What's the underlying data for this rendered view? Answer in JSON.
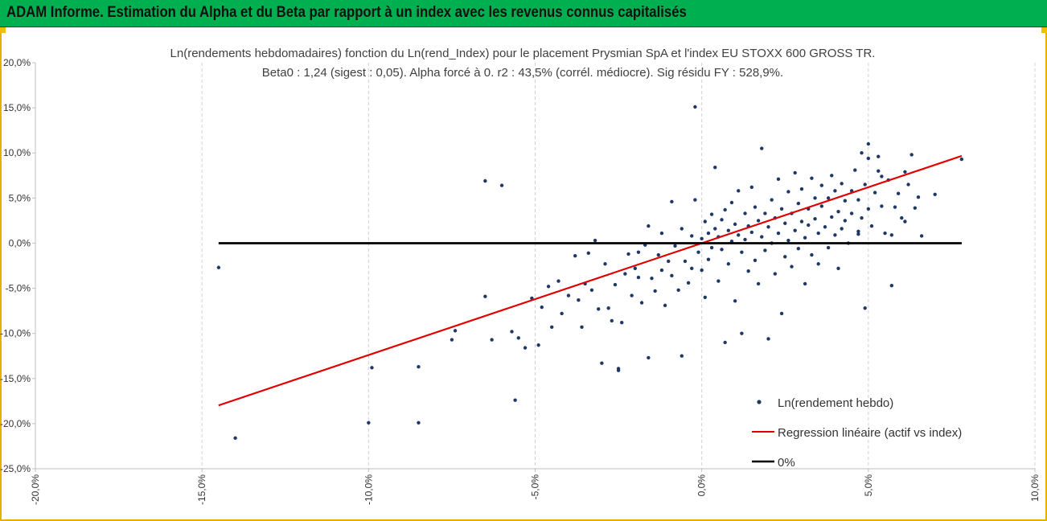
{
  "header": {
    "title": "ADAM Informe. Estimation du Alpha et du Beta par rapport à un index avec les revenus connus capitalisés"
  },
  "chart_data": {
    "type": "scatter",
    "title": "Ln(rendements hebdomadaires) fonction du Ln(rend_Index) pour le placement Prysmian SpA et l'index EU STOXX 600 GROSS TR.",
    "subtitle": "Beta0 : 1,24  (sigest : 0,05).  Alpha forcé à 0. r2 : 43,5% (corrél. médiocre). Sig résidu FY : 528,9%.",
    "xlim": [
      -0.2,
      0.1
    ],
    "ylim": [
      -0.25,
      0.2
    ],
    "x_ticks": [
      -0.2,
      -0.15,
      -0.1,
      -0.05,
      0,
      0.05,
      0.1
    ],
    "x_tick_labels": [
      "-20,0%",
      "-15,0%",
      "-10,0%",
      "-5,0%",
      "0,0%",
      "5,0%",
      "10,0%"
    ],
    "y_ticks": [
      0.2,
      0.15,
      0.1,
      0.05,
      0,
      -0.05,
      -0.1,
      -0.15,
      -0.2,
      -0.25
    ],
    "y_tick_labels": [
      "20,0%",
      "15,0%",
      "10,0%",
      "5,0%",
      "0,0%",
      "-5,0%",
      "-10,0%",
      "-15,0%",
      "-20,0%",
      "-25,0%"
    ],
    "grid": "vertical",
    "legend_position": "bottom-right",
    "series": [
      {
        "name": "Ln(rendement hebdo)",
        "kind": "scatter",
        "color": "#1f3864",
        "beta": 1.24,
        "points": [
          [
            -0.145,
            -0.027
          ],
          [
            -0.14,
            -0.216
          ],
          [
            -0.1,
            -0.199
          ],
          [
            -0.099,
            -0.138
          ],
          [
            -0.085,
            -0.199
          ],
          [
            -0.085,
            -0.137
          ],
          [
            -0.075,
            -0.107
          ],
          [
            -0.074,
            -0.097
          ],
          [
            -0.065,
            0.069
          ],
          [
            -0.063,
            -0.107
          ],
          [
            -0.065,
            -0.059
          ],
          [
            -0.06,
            0.064
          ],
          [
            -0.057,
            -0.098
          ],
          [
            -0.056,
            -0.174
          ],
          [
            -0.055,
            -0.105
          ],
          [
            -0.053,
            -0.116
          ],
          [
            -0.051,
            -0.061
          ],
          [
            -0.049,
            -0.113
          ],
          [
            -0.048,
            -0.071
          ],
          [
            -0.046,
            -0.048
          ],
          [
            -0.045,
            -0.093
          ],
          [
            -0.043,
            -0.042
          ],
          [
            -0.042,
            -0.078
          ],
          [
            -0.04,
            -0.058
          ],
          [
            -0.038,
            -0.014
          ],
          [
            -0.037,
            -0.063
          ],
          [
            -0.036,
            -0.093
          ],
          [
            -0.035,
            -0.045
          ],
          [
            -0.034,
            -0.011
          ],
          [
            -0.033,
            -0.052
          ],
          [
            -0.032,
            0.003
          ],
          [
            -0.031,
            -0.073
          ],
          [
            -0.03,
            -0.133
          ],
          [
            -0.029,
            -0.023
          ],
          [
            -0.028,
            -0.072
          ],
          [
            -0.027,
            -0.086
          ],
          [
            -0.026,
            -0.046
          ],
          [
            -0.025,
            -0.139
          ],
          [
            -0.025,
            -0.141
          ],
          [
            -0.024,
            -0.088
          ],
          [
            -0.023,
            -0.034
          ],
          [
            -0.022,
            -0.012
          ],
          [
            -0.021,
            -0.058
          ],
          [
            -0.02,
            -0.028
          ],
          [
            -0.019,
            -0.038
          ],
          [
            -0.019,
            -0.01
          ],
          [
            -0.018,
            -0.066
          ],
          [
            -0.017,
            -0.002
          ],
          [
            -0.016,
            -0.127
          ],
          [
            -0.016,
            0.019
          ],
          [
            -0.015,
            -0.039
          ],
          [
            -0.014,
            -0.053
          ],
          [
            -0.013,
            -0.013
          ],
          [
            -0.012,
            -0.03
          ],
          [
            -0.012,
            0.011
          ],
          [
            -0.011,
            -0.069
          ],
          [
            -0.01,
            -0.02
          ],
          [
            -0.009,
            0.046
          ],
          [
            -0.009,
            -0.036
          ],
          [
            -0.008,
            -0.003
          ],
          [
            -0.007,
            -0.052
          ],
          [
            -0.006,
            -0.125
          ],
          [
            -0.006,
            0.016
          ],
          [
            -0.005,
            -0.02
          ],
          [
            -0.004,
            -0.044
          ],
          [
            -0.003,
            0.008
          ],
          [
            -0.003,
            -0.028
          ],
          [
            -0.002,
            0.151
          ],
          [
            -0.002,
            0.048
          ],
          [
            -0.001,
            -0.01
          ],
          [
            0.0,
            0.005
          ],
          [
            0.0,
            -0.03
          ],
          [
            0.001,
            0.024
          ],
          [
            0.001,
            -0.06
          ],
          [
            0.002,
            0.011
          ],
          [
            0.002,
            -0.018
          ],
          [
            0.003,
            0.032
          ],
          [
            0.003,
            -0.005
          ],
          [
            0.004,
            0.016
          ],
          [
            0.004,
            0.084
          ],
          [
            0.005,
            -0.042
          ],
          [
            0.005,
            0.007
          ],
          [
            0.006,
            0.026
          ],
          [
            0.006,
            -0.007
          ],
          [
            0.007,
            0.037
          ],
          [
            0.007,
            -0.11
          ],
          [
            0.008,
            0.014
          ],
          [
            0.008,
            -0.023
          ],
          [
            0.009,
            0.045
          ],
          [
            0.009,
            0.002
          ],
          [
            0.01,
            0.021
          ],
          [
            0.01,
            -0.064
          ],
          [
            0.011,
            0.009
          ],
          [
            0.011,
            0.058
          ],
          [
            0.012,
            -0.01
          ],
          [
            0.012,
            -0.1
          ],
          [
            0.013,
            0.033
          ],
          [
            0.013,
            0.004
          ],
          [
            0.014,
            0.019
          ],
          [
            0.014,
            -0.031
          ],
          [
            0.015,
            0.062
          ],
          [
            0.015,
            0.012
          ],
          [
            0.016,
            -0.019
          ],
          [
            0.016,
            0.04
          ],
          [
            0.017,
            0.025
          ],
          [
            0.017,
            -0.045
          ],
          [
            0.018,
            0.007
          ],
          [
            0.018,
            0.105
          ],
          [
            0.019,
            0.033
          ],
          [
            0.019,
            -0.008
          ],
          [
            0.02,
            0.018
          ],
          [
            0.02,
            -0.106
          ],
          [
            0.021,
            0.048
          ],
          [
            0.021,
            0.0
          ],
          [
            0.022,
            0.028
          ],
          [
            0.022,
            -0.034
          ],
          [
            0.023,
            0.071
          ],
          [
            0.023,
            0.011
          ],
          [
            0.024,
            0.038
          ],
          [
            0.024,
            -0.078
          ],
          [
            0.025,
            0.022
          ],
          [
            0.025,
            -0.015
          ],
          [
            0.026,
            0.057
          ],
          [
            0.026,
            0.003
          ],
          [
            0.027,
            0.033
          ],
          [
            0.027,
            -0.026
          ],
          [
            0.028,
            0.014
          ],
          [
            0.028,
            0.078
          ],
          [
            0.029,
            0.044
          ],
          [
            0.029,
            -0.006
          ],
          [
            0.03,
            0.024
          ],
          [
            0.03,
            0.06
          ],
          [
            0.031,
            0.006
          ],
          [
            0.031,
            -0.045
          ],
          [
            0.032,
            0.038
          ],
          [
            0.032,
            0.02
          ],
          [
            0.033,
            0.072
          ],
          [
            0.033,
            -0.013
          ],
          [
            0.034,
            0.027
          ],
          [
            0.034,
            0.05
          ],
          [
            0.035,
            0.011
          ],
          [
            0.035,
            -0.023
          ],
          [
            0.036,
            0.041
          ],
          [
            0.036,
            0.064
          ],
          [
            0.037,
            0.018
          ],
          [
            0.038,
            0.05
          ],
          [
            0.038,
            -0.005
          ],
          [
            0.039,
            0.075
          ],
          [
            0.039,
            0.029
          ],
          [
            0.04,
            0.009
          ],
          [
            0.04,
            0.058
          ],
          [
            0.041,
            0.035
          ],
          [
            0.041,
            -0.028
          ],
          [
            0.042,
            0.066
          ],
          [
            0.042,
            0.016
          ],
          [
            0.043,
            0.047
          ],
          [
            0.043,
            0.025
          ],
          [
            0.044,
            0.0
          ],
          [
            0.045,
            0.058
          ],
          [
            0.045,
            0.033
          ],
          [
            0.046,
            0.081
          ],
          [
            0.047,
            0.013
          ],
          [
            0.047,
            0.048
          ],
          [
            0.048,
            0.028
          ],
          [
            0.049,
            0.065
          ],
          [
            0.049,
            -0.072
          ],
          [
            0.05,
            0.038
          ],
          [
            0.05,
            0.094
          ],
          [
            0.051,
            0.019
          ],
          [
            0.052,
            0.056
          ],
          [
            0.053,
            0.096
          ],
          [
            0.054,
            0.041
          ],
          [
            0.055,
            0.011
          ],
          [
            0.056,
            0.07
          ],
          [
            0.057,
            0.009
          ],
          [
            0.058,
            0.04
          ],
          [
            0.059,
            0.055
          ],
          [
            0.06,
            0.028
          ],
          [
            0.061,
            0.079
          ],
          [
            0.062,
            0.065
          ],
          [
            0.063,
            0.098
          ],
          [
            0.064,
            0.039
          ],
          [
            0.065,
            0.051
          ],
          [
            0.066,
            0.008
          ],
          [
            0.047,
            0.01
          ],
          [
            0.048,
            0.1
          ],
          [
            0.05,
            0.11
          ],
          [
            0.053,
            0.08
          ],
          [
            0.054,
            0.074
          ],
          [
            0.057,
            -0.047
          ],
          [
            0.061,
            0.024
          ],
          [
            0.07,
            0.054
          ],
          [
            0.078,
            0.093
          ]
        ]
      },
      {
        "name": "Regression linéaire (actif vs index)",
        "kind": "line",
        "color": "#e00000",
        "points": [
          [
            -0.145,
            -0.1798
          ],
          [
            0.078,
            0.0967
          ]
        ]
      },
      {
        "name": "0%",
        "kind": "line",
        "color": "#000000",
        "points": [
          [
            -0.145,
            0.0
          ],
          [
            0.078,
            0.0
          ]
        ]
      }
    ]
  }
}
